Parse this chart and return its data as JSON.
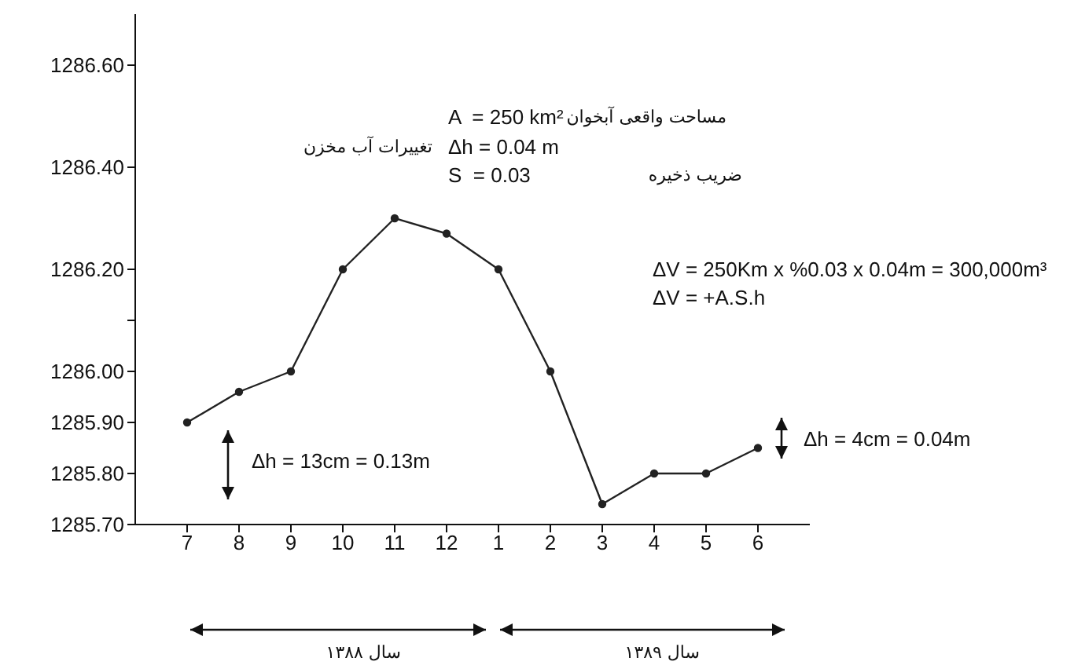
{
  "chart_data": {
    "type": "line",
    "categories": [
      "7",
      "8",
      "9",
      "10",
      "11",
      "12",
      "1",
      "2",
      "3",
      "4",
      "5",
      "6"
    ],
    "values": [
      1285.9,
      1285.96,
      1286.0,
      1286.2,
      1286.3,
      1286.27,
      1286.2,
      1286.0,
      1285.74,
      1285.8,
      1285.8,
      1285.85
    ],
    "color": "#222222",
    "ylim": [
      1285.7,
      1286.7
    ],
    "yticks": [
      {
        "value": 1285.7,
        "label": "1285.70"
      },
      {
        "value": 1285.8,
        "label": "1285.80"
      },
      {
        "value": 1285.9,
        "label": "1285.90"
      },
      {
        "value": 1286.0,
        "label": "1286.00"
      },
      {
        "value": 1286.1,
        "label": null
      },
      {
        "value": 1286.2,
        "label": "1286.20"
      },
      {
        "value": 1286.4,
        "label": "1286.40"
      },
      {
        "value": 1286.6,
        "label": "1286.60"
      }
    ],
    "grid": false,
    "legend": false,
    "marker": "circle",
    "line_style": "solid",
    "annotations": [
      "A  = 250 km²",
      "Δh = 0.04 m",
      "S  = 0.03",
      "مساحت واقعی آبخوان",
      "تغییرات آب مخزن",
      "ضریب ذخیره",
      "ΔV = 250Km x %0.03 x 0.04m = 300,000m³",
      "ΔV = +A.S.h",
      "Δh = 13cm = 0.13m",
      "Δh = 4cm = 0.04m",
      "سال ۱۳۸۸",
      "سال ۱۳۸۹"
    ]
  }
}
